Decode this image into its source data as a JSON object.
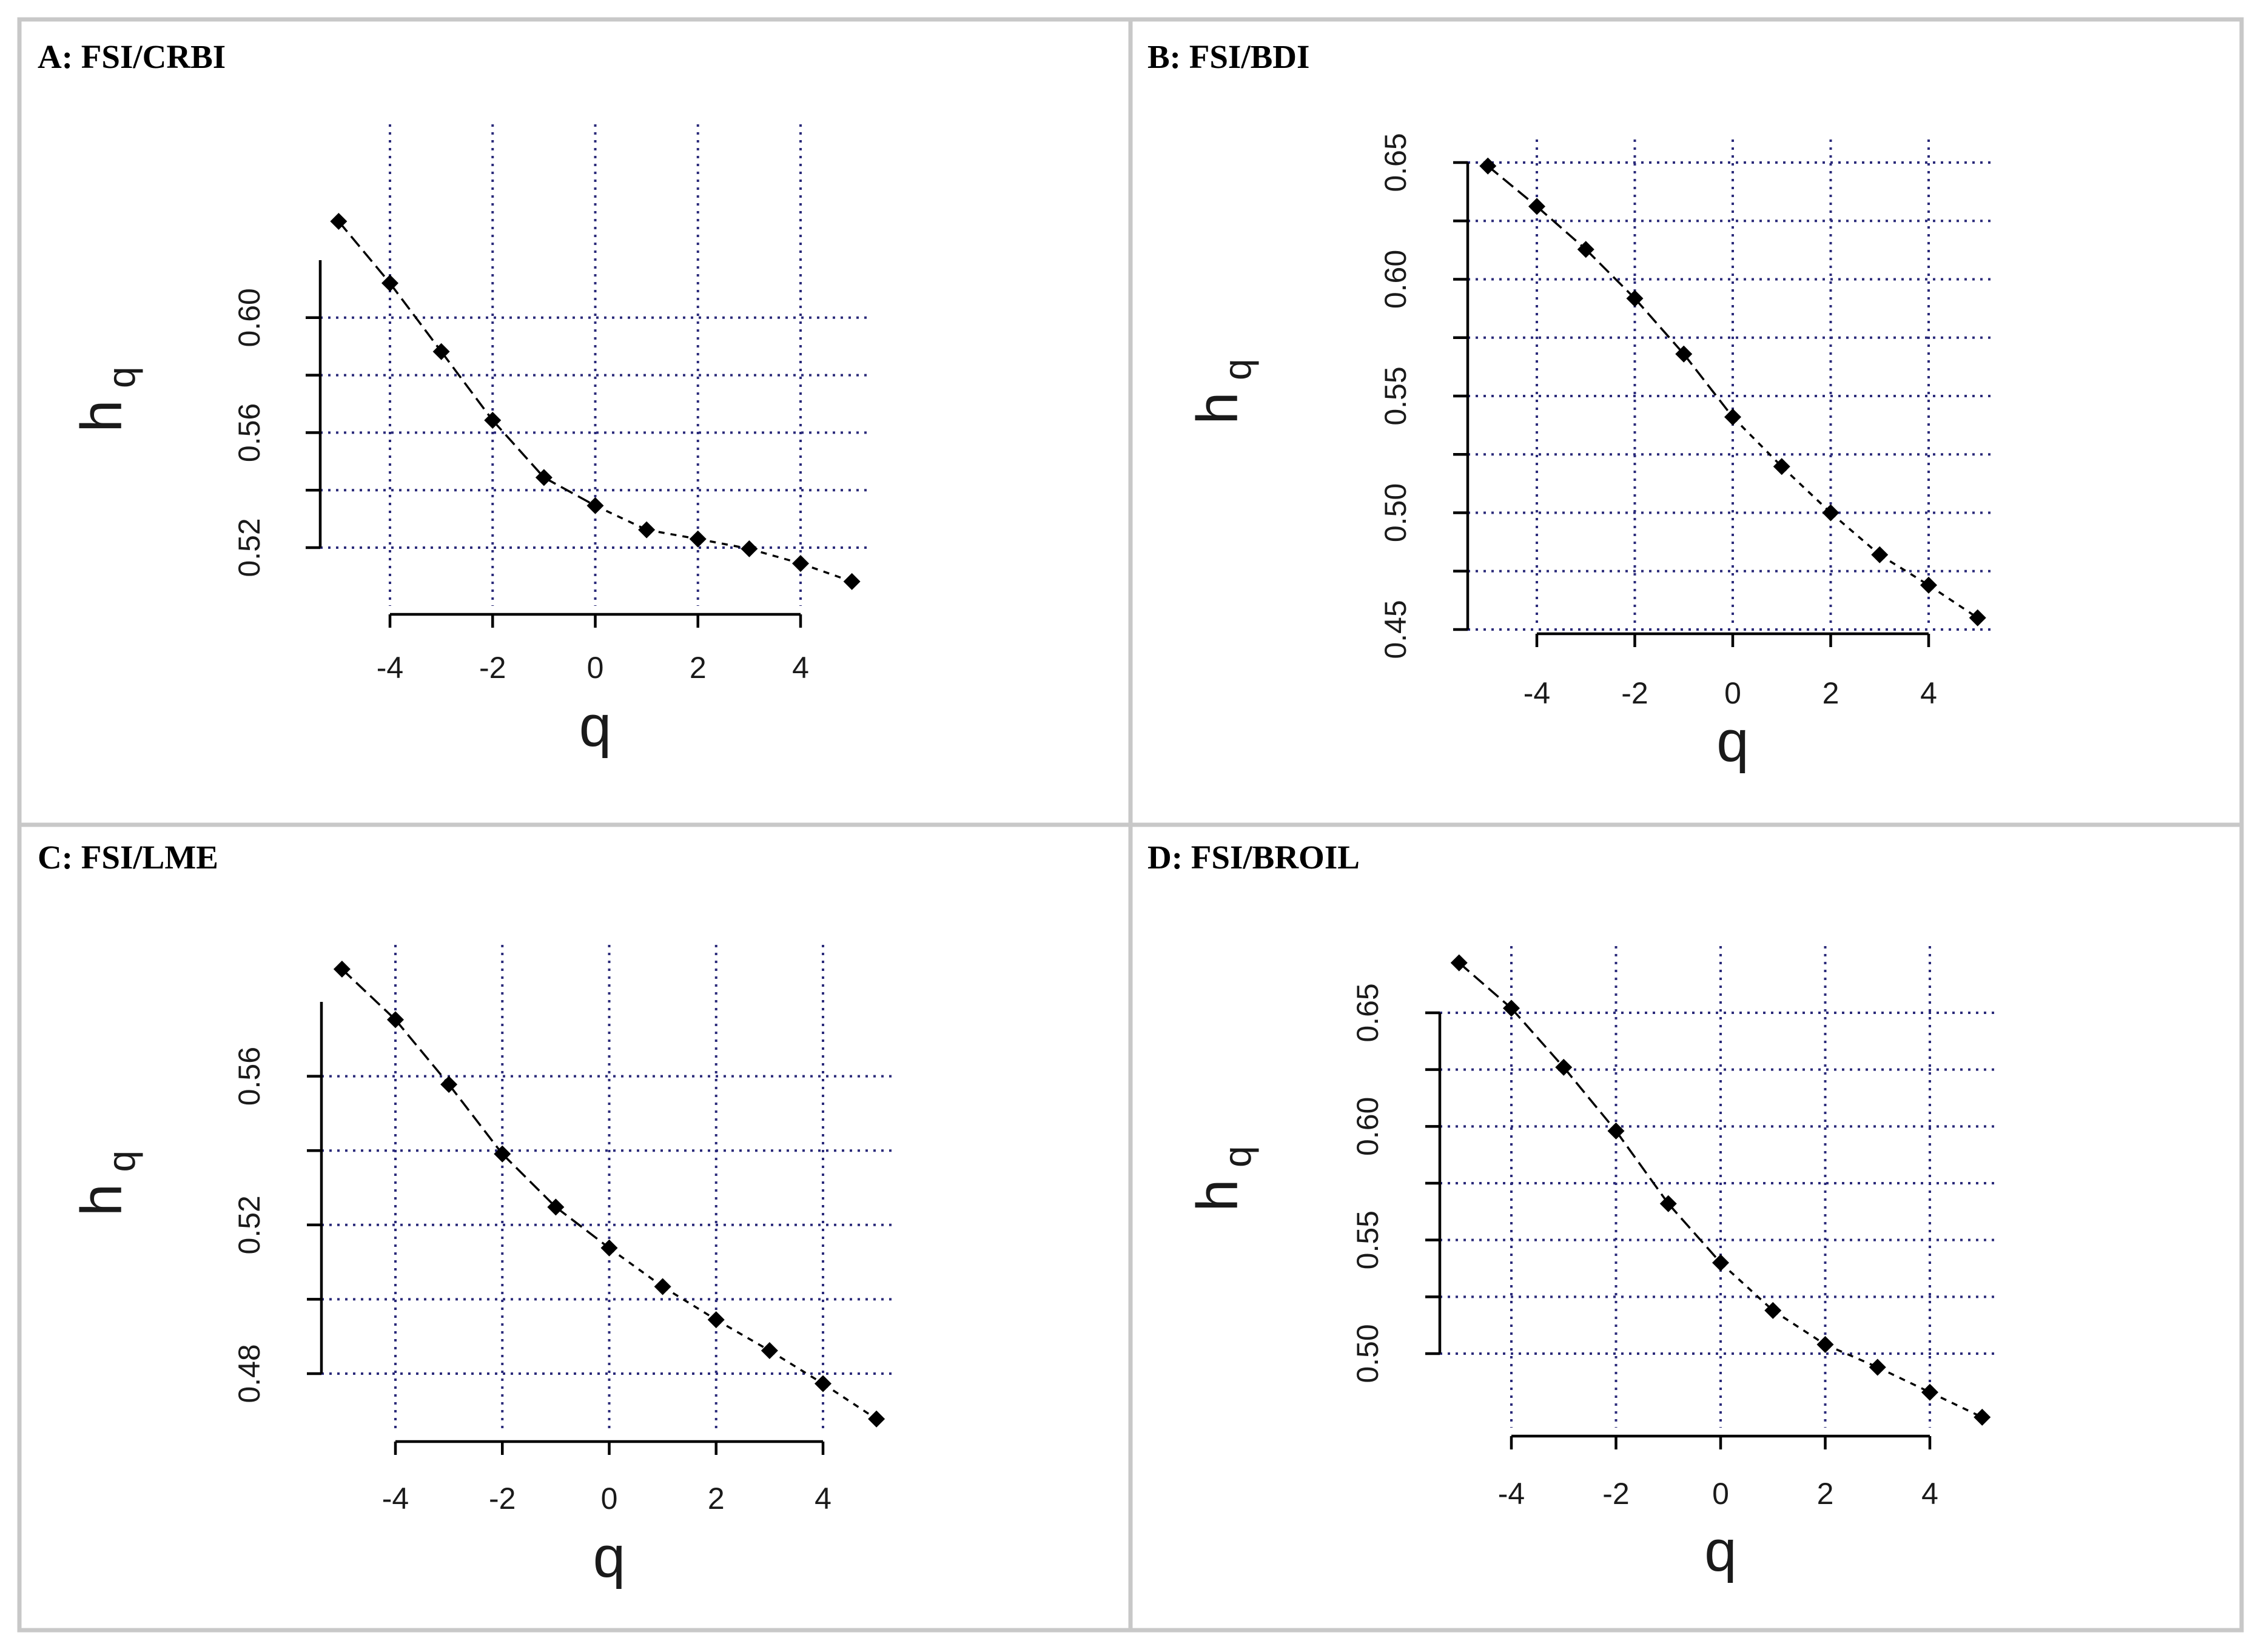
{
  "chart_data": [
    {
      "type": "line",
      "title": "A: FSI/CRBI",
      "xlabel": "q",
      "ylabel": "h",
      "ylabel_subscript": "q",
      "x": [
        -5,
        -4,
        -3,
        -2,
        -1,
        0,
        1,
        2,
        3,
        4,
        5
      ],
      "y": [
        0.6335,
        0.612,
        0.5882,
        0.5643,
        0.5444,
        0.5346,
        0.5262,
        0.523,
        0.5196,
        0.5145,
        0.5082
      ],
      "xticks": [
        "-4",
        "-2",
        "0",
        "2",
        "4"
      ],
      "yticks": [
        "0.52",
        "0.56",
        "0.60"
      ],
      "xlim": [
        -4,
        4
      ],
      "ylim": [
        0.52,
        0.62
      ],
      "grid": true
    },
    {
      "type": "line",
      "title": "B: FSI/BDI",
      "xlabel": "q",
      "ylabel": "h",
      "ylabel_subscript": "q",
      "x": [
        -5,
        -4,
        -3,
        -2,
        -1,
        0,
        1,
        2,
        3,
        4,
        5
      ],
      "y": [
        0.6485,
        0.6312,
        0.6128,
        0.5918,
        0.568,
        0.541,
        0.5198,
        0.5,
        0.482,
        0.469,
        0.455
      ],
      "xticks": [
        "-4",
        "-2",
        "0",
        "2",
        "4"
      ],
      "yticks": [
        "0.45",
        "0.50",
        "0.55",
        "0.60",
        "0.65"
      ],
      "xlim": [
        -4,
        4
      ],
      "ylim": [
        0.45,
        0.65
      ],
      "grid": true
    },
    {
      "type": "line",
      "title": "C: FSI/LME",
      "xlabel": "q",
      "ylabel": "h",
      "ylabel_subscript": "q",
      "x": [
        -5,
        -4,
        -3,
        -2,
        -1,
        0,
        1,
        2,
        3,
        4,
        5
      ],
      "y": [
        0.5888,
        0.5752,
        0.5578,
        0.5391,
        0.5248,
        0.5138,
        0.5034,
        0.4945,
        0.4862,
        0.4773,
        0.4678
      ],
      "xticks": [
        "-4",
        "-2",
        "0",
        "2",
        "4"
      ],
      "yticks": [
        "0.48",
        "0.52",
        "0.56"
      ],
      "xlim": [
        -4,
        4
      ],
      "ylim": [
        0.48,
        0.58
      ],
      "grid": true
    },
    {
      "type": "line",
      "title": "D: FSI/BROIL",
      "xlabel": "q",
      "ylabel": "h",
      "ylabel_subscript": "q",
      "x": [
        -5,
        -4,
        -3,
        -2,
        -1,
        0,
        1,
        2,
        3,
        4,
        5
      ],
      "y": [
        0.672,
        0.652,
        0.626,
        0.598,
        0.566,
        0.54,
        0.519,
        0.504,
        0.494,
        0.483,
        0.472
      ],
      "xticks": [
        "-4",
        "-2",
        "0",
        "2",
        "4"
      ],
      "yticks": [
        "0.50",
        "0.55",
        "0.60",
        "0.65"
      ],
      "xlim": [
        -4,
        4
      ],
      "ylim": [
        0.5,
        0.65
      ],
      "grid": true
    }
  ]
}
